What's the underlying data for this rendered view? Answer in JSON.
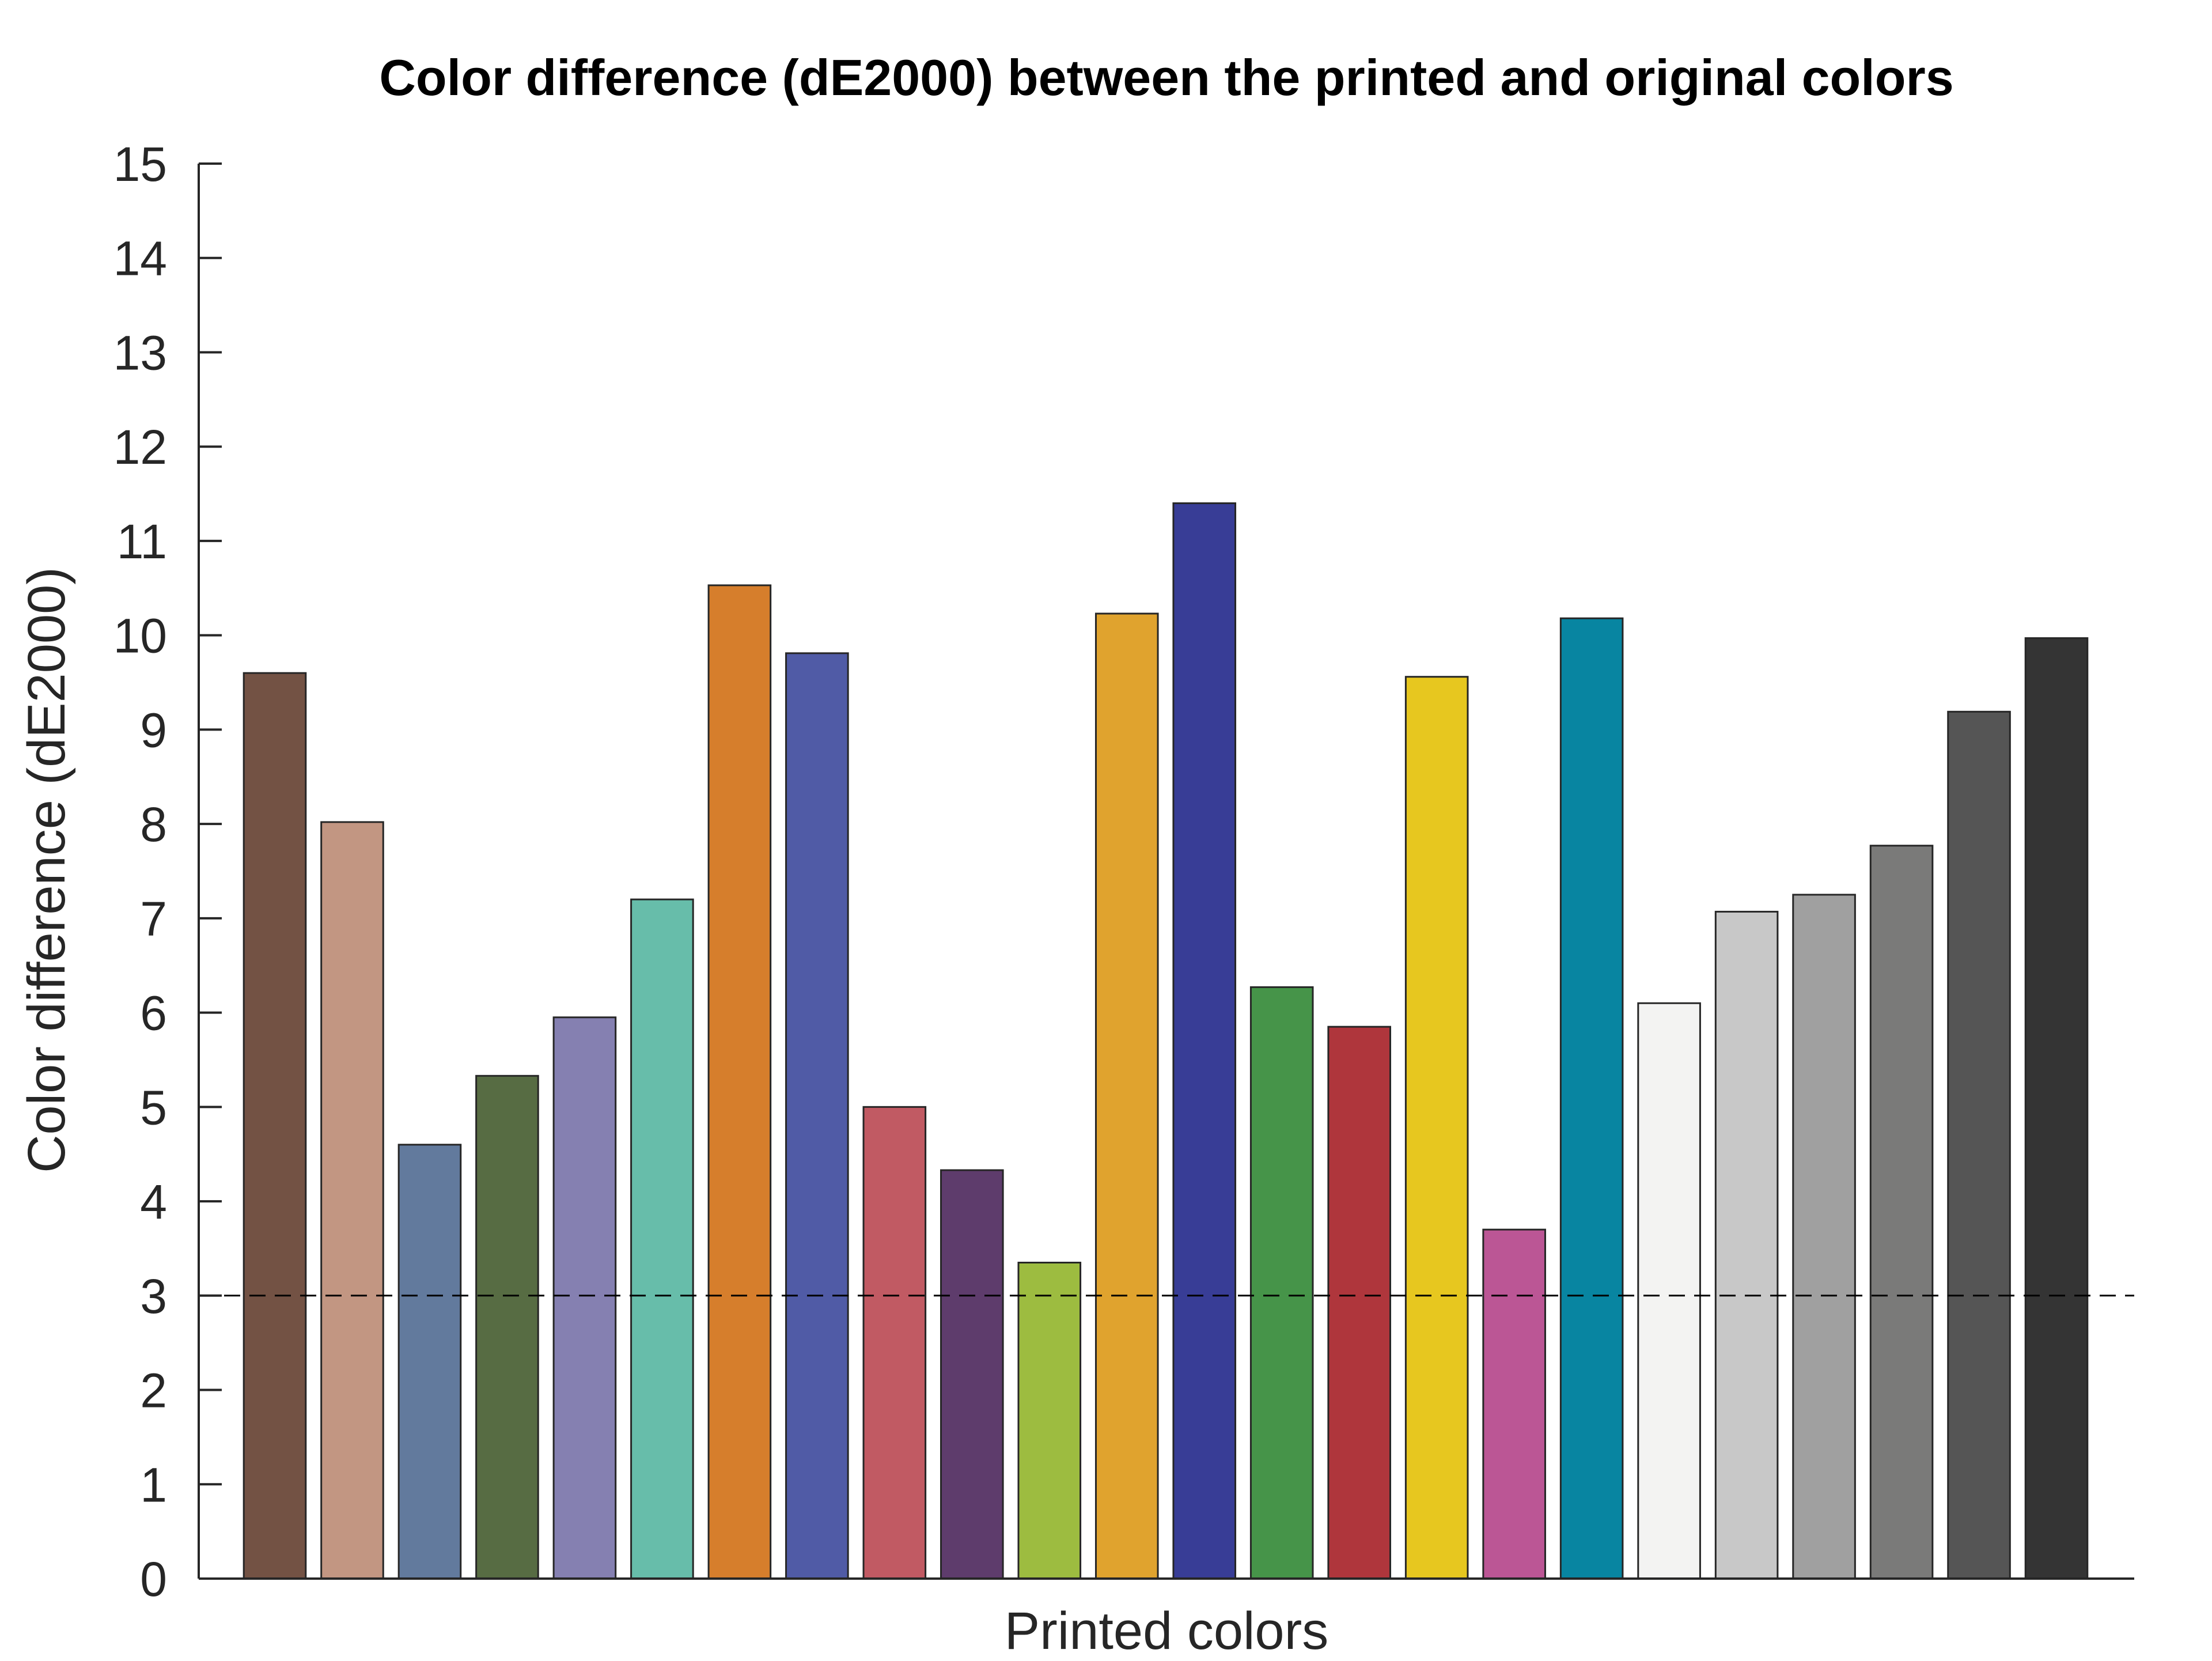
{
  "chart_data": {
    "type": "bar",
    "title": "Color difference (dE2000) between the printed and original colors",
    "xlabel": "Printed colors",
    "ylabel": "Color difference (dE2000)",
    "ylim": [
      0,
      15
    ],
    "yticks": [
      0,
      1,
      2,
      3,
      4,
      5,
      6,
      7,
      8,
      9,
      10,
      11,
      12,
      13,
      14,
      15
    ],
    "ytick_labels": [
      "0",
      "1",
      "2",
      "3",
      "4",
      "5",
      "6",
      "7",
      "8",
      "9",
      "10",
      "11",
      "12",
      "13",
      "14",
      "15"
    ],
    "grid": false,
    "threshold": 3,
    "values": [
      9.6,
      8.02,
      4.6,
      5.33,
      5.95,
      7.2,
      10.53,
      9.81,
      5.0,
      4.33,
      3.35,
      10.23,
      11.4,
      6.27,
      5.85,
      9.56,
      3.7,
      10.18,
      6.1,
      7.07,
      7.25,
      7.77,
      9.19,
      9.97
    ],
    "colors": [
      "#735244",
      "#c29682",
      "#627a9d",
      "#576c43",
      "#8580b1",
      "#67bdaa",
      "#d67e2c",
      "#505ba6",
      "#c15a63",
      "#5e3c6c",
      "#9dbc40",
      "#e0a32e",
      "#383d96",
      "#469449",
      "#af363c",
      "#e7c71f",
      "#bb5695",
      "#0885a1",
      "#f3f3f2",
      "#c8c8c8",
      "#a0a0a0",
      "#7a7a79",
      "#555555",
      "#343434"
    ]
  }
}
